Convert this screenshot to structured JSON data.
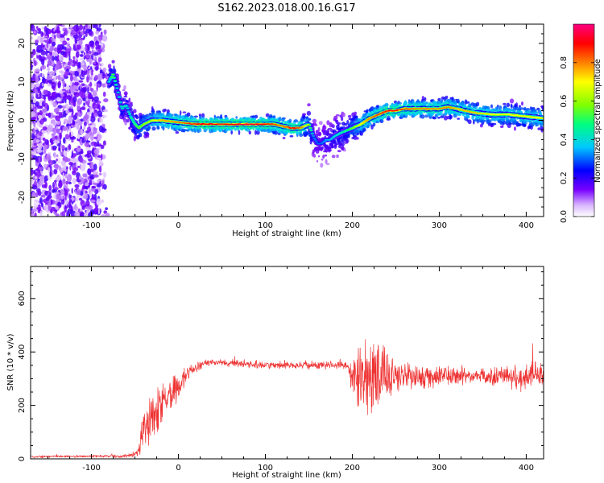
{
  "page": {
    "title": "S162.2023.018.00.16.G17"
  },
  "chart_data": [
    {
      "type": "heatmap",
      "name": "spectrogram",
      "xlabel": "Height of straight line (km)",
      "ylabel": "Frequency (Hz)",
      "xlim": [
        -170,
        420
      ],
      "ylim": [
        -25,
        25
      ],
      "xticks": [
        -100,
        0,
        100,
        200,
        300,
        400
      ],
      "yticks": [
        -20,
        -10,
        0,
        10,
        20
      ],
      "grid": false,
      "colorbar": {
        "label": "Normalized spectral amplitude",
        "range": [
          0,
          1
        ],
        "ticks": [
          0.0,
          0.2,
          0.4,
          0.6,
          0.8
        ],
        "tick_labels": [
          "0.0",
          "0.2",
          "0.4",
          "0.6",
          "0.8"
        ],
        "colormap": [
          "#ffffff",
          "#d8b4ff",
          "#7700ff",
          "#0000ff",
          "#00c8ff",
          "#00ff80",
          "#80ff00",
          "#ffff00",
          "#ff8000",
          "#ff0000",
          "#ff0080"
        ]
      },
      "noise_region_x": [
        -170,
        -80
      ],
      "ridge": {
        "x": [
          -80,
          -75,
          -70,
          -65,
          -60,
          -55,
          -50,
          -45,
          -40,
          -30,
          -20,
          0,
          20,
          40,
          60,
          80,
          100,
          110,
          120,
          130,
          140,
          150,
          155,
          160,
          165,
          170,
          175,
          180,
          190,
          200,
          210,
          220,
          230,
          240,
          250,
          260,
          280,
          300,
          310,
          320,
          340,
          360,
          380,
          400,
          420
        ],
        "y": [
          10,
          12,
          8,
          3,
          4,
          1,
          -1,
          -2,
          -1,
          0,
          0,
          -0.5,
          -1,
          -1,
          -1,
          -1,
          -1,
          -1,
          -1.5,
          -2,
          -2,
          -1,
          -4,
          -6,
          -6,
          -5,
          -5,
          -4,
          -3,
          -2,
          -1,
          0.5,
          1.5,
          2.5,
          2.5,
          3,
          3,
          3,
          3.5,
          3,
          2,
          1.5,
          1.5,
          1,
          0.5
        ],
        "amplitude": [
          0.4,
          0.55,
          0.4,
          0.45,
          0.4,
          0.45,
          0.5,
          0.55,
          0.6,
          0.65,
          0.75,
          0.8,
          0.9,
          0.9,
          0.9,
          0.95,
          0.9,
          0.85,
          0.8,
          0.9,
          0.85,
          0.6,
          0.35,
          0.3,
          0.3,
          0.35,
          0.35,
          0.4,
          0.45,
          0.55,
          0.7,
          0.8,
          0.85,
          0.9,
          0.9,
          0.85,
          0.8,
          0.8,
          0.8,
          0.75,
          0.75,
          0.7,
          0.7,
          0.7,
          0.7
        ]
      }
    },
    {
      "type": "line",
      "name": "snr",
      "xlabel": "Height of straight line (km)",
      "ylabel": "SNR (10 * v/v)",
      "xlim": [
        -170,
        420
      ],
      "ylim": [
        0,
        720
      ],
      "xticks": [
        -100,
        0,
        100,
        200,
        300,
        400
      ],
      "yticks": [
        0,
        200,
        400,
        600
      ],
      "grid": false,
      "color": "#ee3333",
      "envelope": {
        "x": [
          -170,
          -100,
          -60,
          -50,
          -45,
          -40,
          -35,
          -30,
          -20,
          -10,
          0,
          10,
          20,
          30,
          50,
          80,
          100,
          150,
          195,
          200,
          210,
          220,
          230,
          240,
          250,
          260,
          280,
          300,
          350,
          380,
          390,
          400,
          420
        ],
        "mean": [
          8,
          10,
          10,
          15,
          40,
          110,
          140,
          150,
          190,
          230,
          280,
          320,
          340,
          360,
          360,
          355,
          350,
          350,
          350,
          320,
          300,
          300,
          320,
          320,
          310,
          310,
          310,
          310,
          310,
          310,
          300,
          310,
          310
        ],
        "spread": [
          6,
          6,
          8,
          15,
          40,
          90,
          120,
          140,
          130,
          110,
          70,
          40,
          25,
          20,
          15,
          20,
          20,
          20,
          25,
          120,
          180,
          220,
          190,
          150,
          110,
          80,
          60,
          50,
          40,
          50,
          70,
          70,
          70
        ]
      }
    }
  ]
}
